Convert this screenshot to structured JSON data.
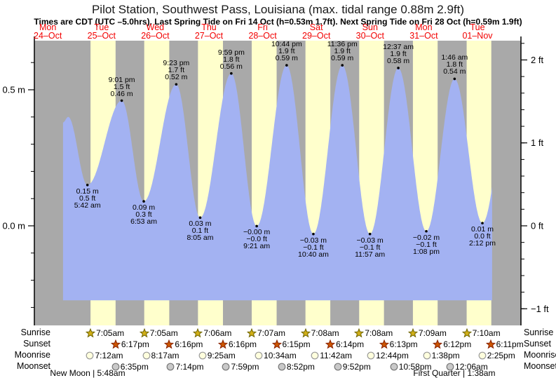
{
  "title": "Pilot Station, Southwest Pass, Louisiana (max. tidal range 0.88m 2.9ft)",
  "subtitle": "Times are CDT (UTC –5.0hrs). Last Spring Tide on Fri 14 Oct (h=0.53m 1.7ft). Next Spring Tide on Fri 28 Oct (h=0.59m 1.9ft)",
  "colors": {
    "day_band": "#ffffcc",
    "night_band": "#a9a9a9",
    "tide_fill": "#a3b2f2",
    "day_label": "#f20000",
    "axis": "#000000",
    "annotation_text": "#000000",
    "sunrise_star_fill": "#d1af17",
    "sunrise_star_stroke": "#6e6400",
    "sunset_star_fill": "#cc5500",
    "sunset_star_stroke": "#882200",
    "moonrise_circle_fill": "#ffffdd",
    "moonrise_circle_stroke": "#999999",
    "moonset_circle_fill": "#c9c9c9",
    "moonset_circle_stroke": "#777777"
  },
  "chart_data": {
    "type": "area",
    "title": "Pilot Station, Southwest Pass, Louisiana (max. tidal range 0.88m 2.9ft)",
    "x_days": [
      {
        "dow": "Mon",
        "date": "24–Oct"
      },
      {
        "dow": "Tue",
        "date": "25–Oct"
      },
      {
        "dow": "Wed",
        "date": "26–Oct"
      },
      {
        "dow": "Thu",
        "date": "27–Oct"
      },
      {
        "dow": "Fri",
        "date": "28–Oct"
      },
      {
        "dow": "Sat",
        "date": "29–Oct"
      },
      {
        "dow": "Sun",
        "date": "30–Oct"
      },
      {
        "dow": "Mon",
        "date": "31–Oct"
      },
      {
        "dow": "Tue",
        "date": "01–Nov"
      }
    ],
    "y_axis_left": {
      "unit": "m",
      "major": [
        {
          "v": 0.5,
          "label": "0.5 m"
        },
        {
          "v": 0.0,
          "label": "0.0 m"
        }
      ],
      "minor_step_m": 0.1,
      "minor_range": [
        -0.3,
        0.6
      ]
    },
    "y_axis_right": {
      "unit": "ft",
      "major": [
        {
          "v": 2,
          "label": "2 ft"
        },
        {
          "v": 1,
          "label": "1 ft"
        },
        {
          "v": 0,
          "label": "0 ft"
        },
        {
          "v": -1,
          "label": "−1 ft"
        }
      ],
      "minor_step_ft": 0.2,
      "minor_range": [
        -1.0,
        2.2
      ]
    },
    "ylim_m": [
      -0.366,
      0.68
    ],
    "fill_base_m": -0.274,
    "data_window_hours": [
      18.8,
      210.55
    ],
    "curve_start": {
      "t": 18.8,
      "m": 0.38
    },
    "unlabeled_first_high": {
      "t": 21.1,
      "m": 0.4
    },
    "virtual_end_high": {
      "t": 218.7,
      "m": 0.5
    },
    "events": [
      {
        "type": "low",
        "t": 29.7,
        "m": 0.15,
        "lines": [
          "0.15 m",
          "0.5 ft",
          "5:42 am"
        ]
      },
      {
        "type": "high",
        "t": 45.017,
        "m": 0.46,
        "lines": [
          "9:01 pm",
          "1.5 ft",
          "0.46 m"
        ]
      },
      {
        "type": "low",
        "t": 54.883,
        "m": 0.09,
        "lines": [
          "0.09 m",
          "0.3 ft",
          "6:53 am"
        ]
      },
      {
        "type": "high",
        "t": 69.383,
        "m": 0.52,
        "lines": [
          "9:23 pm",
          "1.7 ft",
          "0.52 m"
        ]
      },
      {
        "type": "low",
        "t": 80.083,
        "m": 0.03,
        "lines": [
          "0.03 m",
          "0.1 ft",
          "8:05 am"
        ]
      },
      {
        "type": "high",
        "t": 93.983,
        "m": 0.56,
        "lines": [
          "9:59 pm",
          "1.8 ft",
          "0.56 m"
        ]
      },
      {
        "type": "low",
        "t": 105.35,
        "m": -0.001,
        "lines": [
          "−0.00 m",
          "−0.0 ft",
          "9:21 am"
        ]
      },
      {
        "type": "high",
        "t": 118.733,
        "m": 0.59,
        "lines": [
          "10:44 pm",
          "1.9 ft",
          "0.59 m"
        ]
      },
      {
        "type": "low",
        "t": 130.667,
        "m": -0.03,
        "lines": [
          "−0.03 m",
          "−0.1 ft",
          "10:40 am"
        ]
      },
      {
        "type": "high",
        "t": 143.6,
        "m": 0.59,
        "lines": [
          "11:36 pm",
          "1.9 ft",
          "0.59 m"
        ]
      },
      {
        "type": "low",
        "t": 155.95,
        "m": -0.03,
        "lines": [
          "−0.03 m",
          "−0.1 ft",
          "11:57 am"
        ]
      },
      {
        "type": "high",
        "t": 168.617,
        "m": 0.58,
        "lines": [
          "12:37 am",
          "1.9 ft",
          "0.58 m"
        ]
      },
      {
        "type": "low",
        "t": 181.133,
        "m": -0.02,
        "lines": [
          "−0.02 m",
          "−0.1 ft",
          "1:08 pm"
        ]
      },
      {
        "type": "high",
        "t": 193.767,
        "m": 0.54,
        "lines": [
          "1:46 am",
          "1.8 ft",
          "0.54 m"
        ]
      },
      {
        "type": "low",
        "t": 206.2,
        "m": 0.01,
        "lines": [
          "0.01 m",
          "0.0 ft",
          "2:12 pm"
        ]
      }
    ]
  },
  "astro": {
    "rows": [
      {
        "key": "sunrise",
        "label": "Sunrise",
        "icon": "sunrise-star-icon",
        "items": [
          {
            "t": 31.083,
            "time": "7:05am"
          },
          {
            "t": 55.083,
            "time": "7:05am"
          },
          {
            "t": 79.1,
            "time": "7:06am"
          },
          {
            "t": 103.117,
            "time": "7:07am"
          },
          {
            "t": 127.133,
            "time": "7:08am"
          },
          {
            "t": 151.133,
            "time": "7:08am"
          },
          {
            "t": 175.15,
            "time": "7:09am"
          },
          {
            "t": 199.167,
            "time": "7:10am"
          }
        ]
      },
      {
        "key": "sunset",
        "label": "Sunset",
        "icon": "sunset-star-icon",
        "items": [
          {
            "t": 42.283,
            "time": "6:17pm"
          },
          {
            "t": 66.267,
            "time": "6:16pm"
          },
          {
            "t": 90.267,
            "time": "6:16pm"
          },
          {
            "t": 114.25,
            "time": "6:15pm"
          },
          {
            "t": 138.233,
            "time": "6:14pm"
          },
          {
            "t": 162.217,
            "time": "6:13pm"
          },
          {
            "t": 186.2,
            "time": "6:12pm"
          },
          {
            "t": 210.183,
            "time": "6:11pm"
          }
        ]
      },
      {
        "key": "moonrise",
        "label": "Moonrise",
        "icon": "moonrise-circle-icon",
        "items": [
          {
            "t": 31.2,
            "time": "7:12am"
          },
          {
            "t": 56.283,
            "time": "8:17am"
          },
          {
            "t": 81.417,
            "time": "9:25am"
          },
          {
            "t": 106.567,
            "time": "10:34am"
          },
          {
            "t": 131.7,
            "time": "11:42am"
          },
          {
            "t": 156.733,
            "time": "12:44pm"
          },
          {
            "t": 181.633,
            "time": "1:38pm"
          },
          {
            "t": 206.417,
            "time": "2:25pm"
          }
        ]
      },
      {
        "key": "moonset",
        "label": "Moonset",
        "icon": "moonset-circle-icon",
        "items": [
          {
            "t": 42.583,
            "time": "6:35pm"
          },
          {
            "t": 67.233,
            "time": "7:14pm"
          },
          {
            "t": 91.983,
            "time": "7:59pm"
          },
          {
            "t": 116.867,
            "time": "8:52pm"
          },
          {
            "t": 141.867,
            "time": "9:52pm"
          },
          {
            "t": 166.967,
            "time": "10:58pm"
          },
          {
            "t": 192.1,
            "time": "12:06am"
          }
        ]
      }
    ],
    "moon_phases": [
      {
        "t": 29.8,
        "label": "New Moon | 5:48am"
      },
      {
        "t": 193.633,
        "label": "First Quarter | 1:38am"
      }
    ]
  }
}
